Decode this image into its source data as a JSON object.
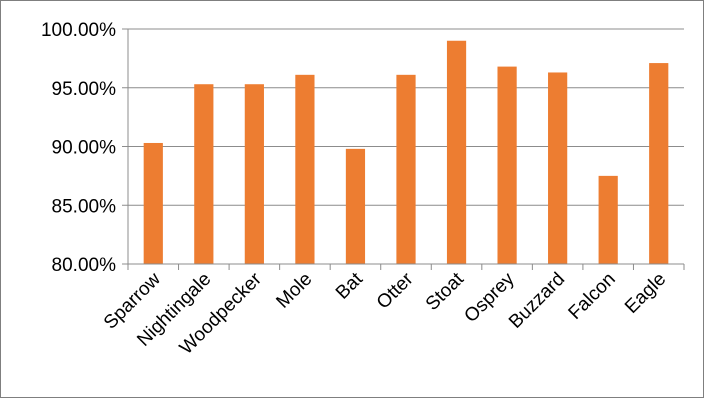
{
  "chart_data": {
    "type": "bar",
    "categories": [
      "Sparrow",
      "Nightingale",
      "Woodpecker",
      "Mole",
      "Bat",
      "Otter",
      "Stoat",
      "Osprey",
      "Buzzard",
      "Falcon",
      "Eagle"
    ],
    "values": [
      90.3,
      95.3,
      95.3,
      96.1,
      89.8,
      96.1,
      99.0,
      96.8,
      96.3,
      87.5,
      97.1
    ],
    "yticks": [
      "80.00%",
      "85.00%",
      "90.00%",
      "95.00%",
      "100.00%"
    ],
    "ylim": [
      80,
      100
    ],
    "grid": true,
    "legend": "none",
    "bar_color": "#ED7D31"
  }
}
